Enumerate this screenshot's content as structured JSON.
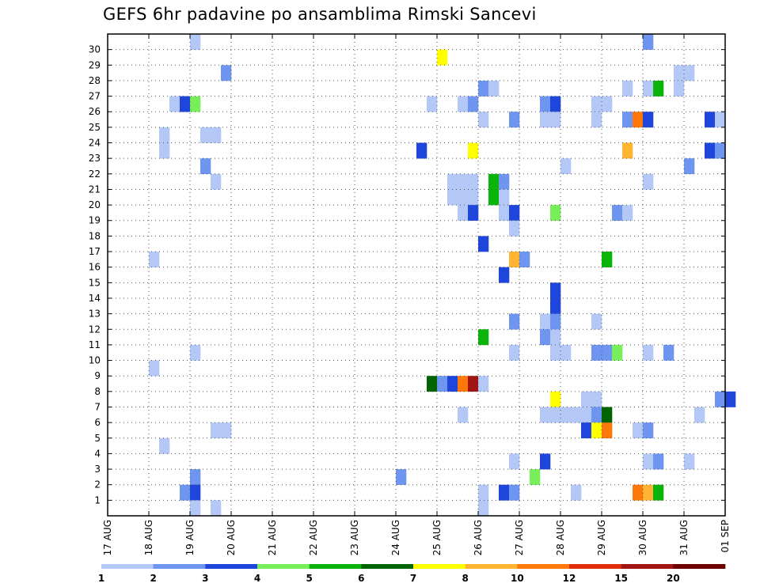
{
  "chart_data": {
    "type": "heatmap",
    "title": "GEFS 6hr padavine po ansamblima Rimski Sancevi",
    "xlabel": "",
    "ylabel": "",
    "x_tick_labels": [
      "17 AUG",
      "18 AUG",
      "19 AUG",
      "20 AUG",
      "21 AUG",
      "22 AUG",
      "23 AUG",
      "24 AUG",
      "25 AUG",
      "26 AUG",
      "27 AUG",
      "28 AUG",
      "29 AUG",
      "30 AUG",
      "31 AUG",
      "01 SEP"
    ],
    "x_range_days": [
      0,
      15
    ],
    "steps_per_day": 4,
    "y_range": [
      0,
      30
    ],
    "y_tick_labels": [
      "1",
      "2",
      "3",
      "4",
      "5",
      "6",
      "7",
      "8",
      "9",
      "10",
      "11",
      "12",
      "13",
      "14",
      "15",
      "16",
      "17",
      "18",
      "19",
      "20",
      "21",
      "22",
      "23",
      "24",
      "25",
      "26",
      "27",
      "28",
      "29",
      "30"
    ],
    "grid": true,
    "legend": {
      "placement": "bottom",
      "colors": [
        "#b4c8f8",
        "#6e96f0",
        "#1e46dc",
        "#78ee5a",
        "#0ab40a",
        "#006400",
        "#ffff00",
        "#ffb432",
        "#ff780a",
        "#e12d0a",
        "#a01414",
        "#6e0000"
      ],
      "labels": [
        "1",
        "2",
        "3",
        "4",
        "5",
        "6",
        "7",
        "8",
        "10",
        "12",
        "15",
        "20"
      ]
    },
    "cells_note": "each cell = [member, 6-hour step index from 17 AUG 00Z, precipitation mm]",
    "cells": [
      [
        30,
        8,
        1.5
      ],
      [
        30,
        52,
        2.5
      ],
      [
        29,
        32,
        7.5
      ],
      [
        28,
        11,
        2.5
      ],
      [
        28,
        55,
        1.5
      ],
      [
        28,
        56,
        1.5
      ],
      [
        27,
        36,
        2.5
      ],
      [
        27,
        37,
        1.5
      ],
      [
        27,
        50,
        1.5
      ],
      [
        27,
        52,
        1.5
      ],
      [
        27,
        53,
        5.5
      ],
      [
        27,
        55,
        1.5
      ],
      [
        26,
        6,
        1.5
      ],
      [
        26,
        7,
        3.5
      ],
      [
        26,
        8,
        4.5
      ],
      [
        26,
        31,
        1.5
      ],
      [
        26,
        34,
        1.5
      ],
      [
        26,
        35,
        2.5
      ],
      [
        26,
        42,
        2.5
      ],
      [
        26,
        43,
        3.5
      ],
      [
        26,
        47,
        1.5
      ],
      [
        26,
        48,
        1.5
      ],
      [
        25,
        36,
        1.5
      ],
      [
        25,
        39,
        2.5
      ],
      [
        25,
        42,
        1.5
      ],
      [
        25,
        43,
        1.5
      ],
      [
        25,
        47,
        1.5
      ],
      [
        25,
        50,
        2.5
      ],
      [
        25,
        51,
        11
      ],
      [
        25,
        52,
        3.5
      ],
      [
        25,
        58,
        3.5
      ],
      [
        25,
        59,
        1.5
      ],
      [
        24,
        5,
        1.5
      ],
      [
        24,
        9,
        1.5
      ],
      [
        24,
        10,
        1.5
      ],
      [
        23,
        5,
        1.5
      ],
      [
        23,
        30,
        3.5
      ],
      [
        23,
        35,
        7.5
      ],
      [
        23,
        50,
        9
      ],
      [
        23,
        58,
        3.5
      ],
      [
        23,
        59,
        2.5
      ],
      [
        22,
        9,
        2.5
      ],
      [
        22,
        44,
        1.5
      ],
      [
        22,
        56,
        2.5
      ],
      [
        21,
        10,
        1.5
      ],
      [
        21,
        33,
        1.5
      ],
      [
        21,
        34,
        1.5
      ],
      [
        21,
        35,
        1.5
      ],
      [
        21,
        37,
        5.5
      ],
      [
        21,
        38,
        2.5
      ],
      [
        21,
        52,
        1.5
      ],
      [
        20,
        33,
        1.5
      ],
      [
        20,
        34,
        1.5
      ],
      [
        20,
        35,
        1.5
      ],
      [
        20,
        37,
        5.5
      ],
      [
        20,
        38,
        1.5
      ],
      [
        19,
        34,
        1.5
      ],
      [
        19,
        35,
        3.5
      ],
      [
        19,
        38,
        1.5
      ],
      [
        19,
        39,
        3.5
      ],
      [
        19,
        43,
        4.5
      ],
      [
        19,
        49,
        2.5
      ],
      [
        19,
        50,
        1.5
      ],
      [
        18,
        39,
        1.5
      ],
      [
        17,
        36,
        3.5
      ],
      [
        16,
        4,
        1.5
      ],
      [
        16,
        39,
        9
      ],
      [
        16,
        40,
        2.5
      ],
      [
        16,
        48,
        5.5
      ],
      [
        15,
        38,
        3.5
      ],
      [
        14,
        43,
        3.5
      ],
      [
        13,
        43,
        3.5
      ],
      [
        12,
        39,
        2.5
      ],
      [
        12,
        42,
        1.5
      ],
      [
        12,
        43,
        2.5
      ],
      [
        12,
        47,
        1.5
      ],
      [
        11,
        36,
        5.5
      ],
      [
        11,
        42,
        2.5
      ],
      [
        11,
        43,
        1.5
      ],
      [
        10,
        8,
        1.5
      ],
      [
        10,
        39,
        1.5
      ],
      [
        10,
        43,
        1.5
      ],
      [
        10,
        44,
        1.5
      ],
      [
        10,
        47,
        2.5
      ],
      [
        10,
        48,
        2.5
      ],
      [
        10,
        49,
        4.5
      ],
      [
        10,
        52,
        1.5
      ],
      [
        10,
        54,
        2.5
      ],
      [
        9,
        4,
        1.5
      ],
      [
        8,
        31,
        6.5
      ],
      [
        8,
        32,
        2.5
      ],
      [
        8,
        33,
        3.5
      ],
      [
        8,
        34,
        11
      ],
      [
        8,
        35,
        17
      ],
      [
        8,
        36,
        1.5
      ],
      [
        7,
        43,
        7.5
      ],
      [
        7,
        46,
        1.5
      ],
      [
        7,
        47,
        1.5
      ],
      [
        7,
        59,
        2.5
      ],
      [
        7,
        60,
        3.5
      ],
      [
        6,
        34,
        1.5
      ],
      [
        6,
        42,
        1.5
      ],
      [
        6,
        43,
        1.5
      ],
      [
        6,
        44,
        1.5
      ],
      [
        6,
        45,
        1.5
      ],
      [
        6,
        46,
        1.5
      ],
      [
        6,
        47,
        2.5
      ],
      [
        6,
        48,
        6.5
      ],
      [
        6,
        57,
        1.5
      ],
      [
        5,
        10,
        1.5
      ],
      [
        5,
        11,
        1.5
      ],
      [
        5,
        46,
        3.5
      ],
      [
        5,
        47,
        7.5
      ],
      [
        5,
        48,
        11
      ],
      [
        5,
        51,
        1.5
      ],
      [
        5,
        52,
        2.5
      ],
      [
        4,
        5,
        1.5
      ],
      [
        3,
        39,
        1.5
      ],
      [
        3,
        42,
        3.5
      ],
      [
        3,
        52,
        1.5
      ],
      [
        3,
        53,
        2.5
      ],
      [
        3,
        56,
        1.5
      ],
      [
        2,
        8,
        2.5
      ],
      [
        2,
        28,
        2.5
      ],
      [
        2,
        41,
        4.5
      ],
      [
        1,
        7,
        2.5
      ],
      [
        1,
        8,
        3.5
      ],
      [
        1,
        36,
        1.5
      ],
      [
        1,
        38,
        3.5
      ],
      [
        1,
        39,
        2.5
      ],
      [
        1,
        45,
        1.5
      ],
      [
        1,
        51,
        11
      ],
      [
        1,
        52,
        9
      ],
      [
        1,
        53,
        5.5
      ],
      [
        0,
        8,
        1.5
      ],
      [
        0,
        10,
        1.5
      ],
      [
        0,
        36,
        1.5
      ]
    ]
  }
}
